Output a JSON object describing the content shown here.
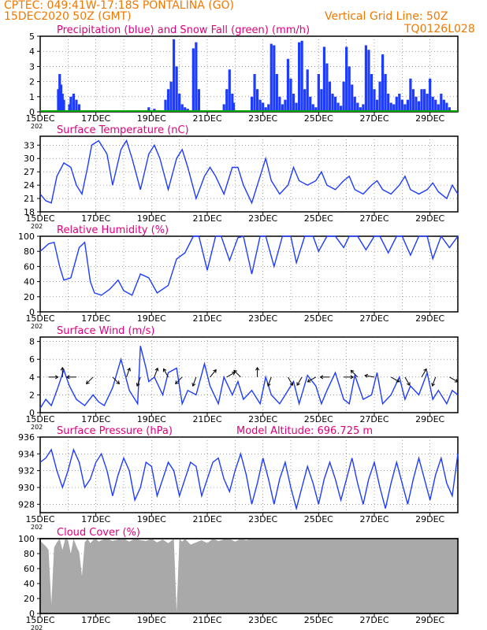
{
  "header": {
    "line1_left": "CPTEC:   049:41W-17:18S   PONTALINA (GO)",
    "line2_left": "15DEC2020 50Z (GMT)",
    "line2_right": "Vertical Grid Line: 50Z",
    "line3_right": "TQ0126L028"
  },
  "colors": {
    "header": "#f07800",
    "title": "#e0007a",
    "line": "#1e3cff",
    "snow": "#00aa00",
    "cloud": "#a9a9a9",
    "grid": "#666666",
    "arrow": "#000000"
  },
  "x_axis": {
    "range_days": [
      0,
      15
    ],
    "tick_labels": [
      "15DEC",
      "17DEC",
      "19DEC",
      "21DEC",
      "23DEC",
      "25DEC",
      "27DEC",
      "29DEC"
    ],
    "first_tick_sublabel": "202"
  },
  "chart_data": [
    {
      "type": "bar",
      "title": "Precipitation (blue) and Snow Fall (green) (mm/h)",
      "ylim": [
        0,
        5
      ],
      "yticks": [
        "0",
        "1",
        "2",
        "3",
        "4",
        "5"
      ],
      "series": [
        {
          "name": "Precipitation",
          "color": "#1e3cff",
          "x_days": [
            0.65,
            0.7,
            0.75,
            0.8,
            0.85,
            1.05,
            1.1,
            1.2,
            1.3,
            1.4,
            3.9,
            4.1,
            4.5,
            4.6,
            4.7,
            4.8,
            4.9,
            5.0,
            5.1,
            5.2,
            5.3,
            5.5,
            5.6,
            5.7,
            6.6,
            6.7,
            6.8,
            6.9,
            6.95,
            7.6,
            7.7,
            7.8,
            7.9,
            8.0,
            8.1,
            8.2,
            8.3,
            8.4,
            8.5,
            8.6,
            8.7,
            8.8,
            8.9,
            9.0,
            9.1,
            9.2,
            9.3,
            9.4,
            9.5,
            9.6,
            9.7,
            9.8,
            9.9,
            10.0,
            10.1,
            10.2,
            10.3,
            10.4,
            10.5,
            10.6,
            10.7,
            10.8,
            10.9,
            11.0,
            11.1,
            11.2,
            11.3,
            11.4,
            11.5,
            11.6,
            11.7,
            11.8,
            11.9,
            12.0,
            12.1,
            12.2,
            12.3,
            12.4,
            12.5,
            12.6,
            12.7,
            12.8,
            12.9,
            13.0,
            13.1,
            13.2,
            13.3,
            13.4,
            13.5,
            13.6,
            13.7,
            13.8,
            13.9,
            14.0,
            14.1,
            14.2,
            14.3,
            14.4,
            14.5,
            14.6,
            14.7
          ],
          "values": [
            1.5,
            2.5,
            1.8,
            1.2,
            0.8,
            0.5,
            1.0,
            1.2,
            0.8,
            0.5,
            0.3,
            0.2,
            0.8,
            1.5,
            2.0,
            4.8,
            3.0,
            1.2,
            0.5,
            0.3,
            0.2,
            4.2,
            4.6,
            1.5,
            0.5,
            1.5,
            2.8,
            1.2,
            0.6,
            1.0,
            2.5,
            1.5,
            0.8,
            0.6,
            0.3,
            0.5,
            4.5,
            4.4,
            2.5,
            1.0,
            0.5,
            0.8,
            3.5,
            2.2,
            1.2,
            0.6,
            4.6,
            4.7,
            1.5,
            2.8,
            1.0,
            0.5,
            0.3,
            2.5,
            1.5,
            4.3,
            3.2,
            2.0,
            1.2,
            1.0,
            0.6,
            0.4,
            2.0,
            4.3,
            3.0,
            1.8,
            1.0,
            0.6,
            0.3,
            0.5,
            4.4,
            4.1,
            2.5,
            1.5,
            0.8,
            2.0,
            3.8,
            2.5,
            1.2,
            0.6,
            0.5,
            1.0,
            1.2,
            0.8,
            0.5,
            0.8,
            2.2,
            1.5,
            1.0,
            0.7,
            1.5,
            1.5,
            1.2,
            2.2,
            1.0,
            0.8,
            0.5,
            1.2,
            0.8,
            0.6,
            0.3
          ]
        },
        {
          "name": "Snow Fall",
          "color": "#00aa00",
          "values": [
            0
          ]
        }
      ]
    },
    {
      "type": "line",
      "title": "Surface Temperature (nC)",
      "ylim": [
        18,
        35
      ],
      "yticks": [
        "18",
        "21",
        "24",
        "27",
        "30",
        "33"
      ],
      "series": [
        {
          "name": "Surface Temperature",
          "x_days": [
            0,
            0.2,
            0.4,
            0.6,
            0.85,
            1.1,
            1.3,
            1.5,
            1.7,
            1.85,
            2.1,
            2.4,
            2.6,
            2.9,
            3.1,
            3.3,
            3.6,
            3.9,
            4.1,
            4.3,
            4.6,
            4.9,
            5.1,
            5.3,
            5.6,
            5.9,
            6.1,
            6.3,
            6.6,
            6.9,
            7.1,
            7.3,
            7.6,
            7.9,
            8.1,
            8.3,
            8.6,
            8.9,
            9.1,
            9.3,
            9.6,
            9.9,
            10.1,
            10.3,
            10.6,
            10.9,
            11.1,
            11.3,
            11.6,
            11.9,
            12.1,
            12.3,
            12.6,
            12.9,
            13.1,
            13.3,
            13.6,
            13.9,
            14.1,
            14.3,
            14.6,
            14.8,
            15.0
          ],
          "values": [
            22,
            20.5,
            20,
            26,
            29,
            28,
            24,
            22,
            28,
            33,
            34,
            31,
            24,
            32,
            34,
            30,
            23,
            31,
            33,
            30,
            23,
            30,
            32,
            28,
            21,
            26,
            28,
            26,
            22,
            28,
            28,
            24,
            20,
            26,
            30,
            25,
            22,
            24,
            28,
            25,
            24,
            25,
            27,
            24,
            23,
            25,
            26,
            23,
            22,
            24,
            25,
            23,
            22,
            24,
            26,
            23,
            22,
            23,
            24.5,
            22.5,
            21,
            24,
            22
          ]
        }
      ]
    },
    {
      "type": "line",
      "title": "Relative Humidity (%)",
      "ylim": [
        0,
        100
      ],
      "yticks": [
        "0",
        "20",
        "40",
        "60",
        "80",
        "100"
      ],
      "series": [
        {
          "name": "Relative Humidity",
          "x_days": [
            0,
            0.3,
            0.5,
            0.7,
            0.85,
            1.1,
            1.4,
            1.6,
            1.8,
            1.95,
            2.2,
            2.5,
            2.8,
            3.0,
            3.3,
            3.6,
            3.9,
            4.2,
            4.6,
            4.9,
            5.2,
            5.5,
            5.7,
            6.0,
            6.3,
            6.5,
            6.8,
            7.1,
            7.3,
            7.6,
            7.9,
            8.1,
            8.4,
            8.7,
            9.0,
            9.2,
            9.5,
            9.8,
            10.0,
            10.3,
            10.6,
            10.9,
            11.1,
            11.4,
            11.7,
            12.0,
            12.2,
            12.5,
            12.8,
            13.0,
            13.3,
            13.6,
            13.9,
            14.1,
            14.4,
            14.7,
            15.0
          ],
          "values": [
            80,
            90,
            92,
            60,
            42,
            45,
            85,
            92,
            40,
            25,
            22,
            30,
            42,
            28,
            22,
            50,
            45,
            25,
            35,
            70,
            78,
            100,
            100,
            55,
            100,
            100,
            68,
            98,
            100,
            50,
            100,
            100,
            60,
            100,
            100,
            65,
            100,
            100,
            80,
            100,
            100,
            85,
            100,
            100,
            82,
            100,
            100,
            78,
            100,
            100,
            75,
            100,
            100,
            70,
            100,
            85,
            100
          ]
        }
      ]
    },
    {
      "type": "line",
      "title": "Surface Wind (m/s)",
      "ylim": [
        0,
        8.5
      ],
      "yticks": [
        "0",
        "2",
        "4",
        "6",
        "8"
      ],
      "series": [
        {
          "name": "Surface Wind",
          "x_days": [
            0,
            0.2,
            0.4,
            0.6,
            0.85,
            1.05,
            1.3,
            1.6,
            1.9,
            2.1,
            2.3,
            2.6,
            2.9,
            3.2,
            3.5,
            3.6,
            3.8,
            3.9,
            4.1,
            4.4,
            4.6,
            4.9,
            5.1,
            5.3,
            5.6,
            5.9,
            6.1,
            6.4,
            6.6,
            6.9,
            7.1,
            7.3,
            7.6,
            7.9,
            8.1,
            8.3,
            8.6,
            8.9,
            9.1,
            9.3,
            9.6,
            9.9,
            10.1,
            10.3,
            10.6,
            10.9,
            11.1,
            11.3,
            11.6,
            11.9,
            12.1,
            12.3,
            12.6,
            12.9,
            13.1,
            13.3,
            13.6,
            13.9,
            14.1,
            14.3,
            14.6,
            14.8,
            15.0
          ],
          "values": [
            0.5,
            1.5,
            0.8,
            2.5,
            4.8,
            3.0,
            1.5,
            0.8,
            2.0,
            1.2,
            0.8,
            2.8,
            6.0,
            2.5,
            1.0,
            7.5,
            5.0,
            3.5,
            4.0,
            2.0,
            4.5,
            5.0,
            1.0,
            2.5,
            2.0,
            5.5,
            3.0,
            1.0,
            4.0,
            2.0,
            3.5,
            1.5,
            2.5,
            1.0,
            4.0,
            2.0,
            1.0,
            2.5,
            3.5,
            1.0,
            4.2,
            3.0,
            1.0,
            2.5,
            4.5,
            1.5,
            1.0,
            4.2,
            1.5,
            2.0,
            4.5,
            1.0,
            2.0,
            4.0,
            1.5,
            3.0,
            2.0,
            4.5,
            1.5,
            2.5,
            1.0,
            2.5,
            2.0
          ]
        }
      ],
      "wind_arrows": {
        "x_days": [
          0.3,
          0.8,
          1.3,
          1.9,
          2.6,
          3.1,
          3.6,
          4.1,
          4.6,
          5.1,
          5.6,
          6.1,
          6.7,
          7.2,
          7.8,
          8.3,
          8.9,
          9.4,
          9.9,
          10.4,
          10.9,
          11.4,
          12.0,
          12.6,
          13.1,
          13.7,
          14.2,
          14.7
        ],
        "y_value": 4.0,
        "dir_from_deg": [
          270,
          180,
          90,
          45,
          315,
          200,
          20,
          200,
          150,
          45,
          20,
          220,
          240,
          135,
          180,
          20,
          330,
          30,
          60,
          90,
          270,
          135,
          100,
          300,
          330,
          210,
          20,
          300
        ]
      }
    },
    {
      "type": "line",
      "title": "Surface Pressure (hPa)",
      "annotation": "Model Altitude: 696.725  m",
      "ylim": [
        927,
        936
      ],
      "yticks": [
        "928",
        "930",
        "932",
        "934",
        "936"
      ],
      "series": [
        {
          "name": "Surface Pressure",
          "x_days": [
            0,
            0.2,
            0.4,
            0.6,
            0.8,
            1.0,
            1.2,
            1.4,
            1.6,
            1.8,
            2.0,
            2.2,
            2.4,
            2.6,
            2.8,
            3.0,
            3.2,
            3.4,
            3.6,
            3.8,
            4.0,
            4.2,
            4.4,
            4.6,
            4.8,
            5.0,
            5.2,
            5.4,
            5.6,
            5.8,
            6.0,
            6.2,
            6.4,
            6.6,
            6.8,
            7.0,
            7.2,
            7.4,
            7.6,
            7.8,
            8.0,
            8.2,
            8.4,
            8.6,
            8.8,
            9.0,
            9.2,
            9.4,
            9.6,
            9.8,
            10.0,
            10.2,
            10.4,
            10.6,
            10.8,
            11.0,
            11.2,
            11.4,
            11.6,
            11.8,
            12.0,
            12.2,
            12.4,
            12.6,
            12.8,
            13.0,
            13.2,
            13.4,
            13.6,
            13.8,
            14.0,
            14.2,
            14.4,
            14.6,
            14.8,
            15.0
          ],
          "values": [
            933,
            933.5,
            934.5,
            932,
            930,
            932,
            934.5,
            933,
            930,
            931,
            933,
            934,
            932,
            929,
            931.5,
            933.5,
            932,
            928.5,
            930,
            933,
            932.5,
            929,
            931,
            933,
            932,
            929,
            931,
            933,
            932.5,
            929,
            931,
            933,
            933.5,
            931,
            929.5,
            932,
            934,
            931.5,
            928,
            930.5,
            933.5,
            931,
            928,
            931,
            933,
            930,
            927.5,
            930,
            932.5,
            930.5,
            928,
            931,
            933,
            931,
            928.5,
            931,
            933.5,
            930.5,
            928,
            931,
            933,
            930,
            927.5,
            930.5,
            933,
            930.5,
            928,
            931,
            933.5,
            931,
            928.5,
            931.5,
            933.5,
            930.5,
            929,
            934
          ]
        }
      ]
    },
    {
      "type": "area",
      "title": "Cloud Cover (%)",
      "ylim": [
        0,
        100
      ],
      "yticks": [
        "0",
        "20",
        "40",
        "60",
        "80",
        "100"
      ],
      "series": [
        {
          "name": "Cloud Cover",
          "color": "#a9a9a9",
          "x_days": [
            0,
            0.2,
            0.3,
            0.4,
            0.5,
            0.6,
            0.7,
            0.8,
            0.9,
            1.0,
            1.1,
            1.2,
            1.3,
            1.4,
            1.5,
            1.6,
            1.7,
            1.8,
            1.9,
            2.0,
            2.1,
            2.2,
            2.4,
            2.6,
            2.8,
            3.0,
            3.2,
            3.4,
            3.6,
            3.8,
            4.0,
            4.2,
            4.4,
            4.6,
            4.8,
            4.9,
            5.0,
            5.1,
            5.2,
            5.4,
            5.6,
            5.8,
            6.0,
            6.2,
            6.4,
            6.6,
            6.8,
            7.0,
            7.2,
            7.4,
            7.6,
            7.8,
            8.0,
            9.0,
            10.0,
            11.0,
            12.0,
            13.0,
            14.0,
            15.0
          ],
          "values": [
            97,
            90,
            85,
            12,
            88,
            95,
            100,
            85,
            100,
            98,
            80,
            100,
            90,
            82,
            50,
            95,
            100,
            94,
            98,
            100,
            96,
            98,
            100,
            97,
            99,
            100,
            96,
            100,
            98,
            97,
            100,
            95,
            99,
            94,
            100,
            2,
            100,
            96,
            100,
            92,
            95,
            98,
            94,
            100,
            97,
            99,
            100,
            96,
            100,
            98,
            100,
            100,
            100,
            100,
            100,
            100,
            100,
            100,
            100,
            100
          ]
        }
      ]
    }
  ]
}
